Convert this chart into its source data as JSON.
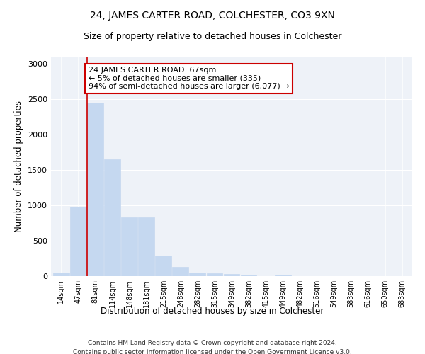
{
  "title1": "24, JAMES CARTER ROAD, COLCHESTER, CO3 9XN",
  "title2": "Size of property relative to detached houses in Colchester",
  "xlabel": "Distribution of detached houses by size in Colchester",
  "ylabel": "Number of detached properties",
  "categories": [
    "14sqm",
    "47sqm",
    "81sqm",
    "114sqm",
    "148sqm",
    "181sqm",
    "215sqm",
    "248sqm",
    "282sqm",
    "315sqm",
    "349sqm",
    "382sqm",
    "415sqm",
    "449sqm",
    "482sqm",
    "516sqm",
    "549sqm",
    "583sqm",
    "616sqm",
    "650sqm",
    "683sqm"
  ],
  "values": [
    50,
    980,
    2450,
    1650,
    830,
    830,
    290,
    130,
    55,
    40,
    30,
    25,
    0,
    25,
    0,
    0,
    0,
    0,
    0,
    0,
    0
  ],
  "bar_color": "#c5d8f0",
  "bar_edge_color": "#c5d8f0",
  "vline_x": 1.5,
  "vline_color": "#cc0000",
  "annotation_text": "24 JAMES CARTER ROAD: 67sqm\n← 5% of detached houses are smaller (335)\n94% of semi-detached houses are larger (6,077) →",
  "annotation_box_color": "#ffffff",
  "annotation_box_edge_color": "#cc0000",
  "ylim": [
    0,
    3100
  ],
  "yticks": [
    0,
    500,
    1000,
    1500,
    2000,
    2500,
    3000
  ],
  "background_color": "#eef2f8",
  "footer1": "Contains HM Land Registry data © Crown copyright and database right 2024.",
  "footer2": "Contains public sector information licensed under the Open Government Licence v3.0.",
  "title1_fontsize": 10,
  "title2_fontsize": 9,
  "xlabel_fontsize": 8.5,
  "ylabel_fontsize": 8.5,
  "annot_fontsize": 8,
  "footer_fontsize": 6.5
}
